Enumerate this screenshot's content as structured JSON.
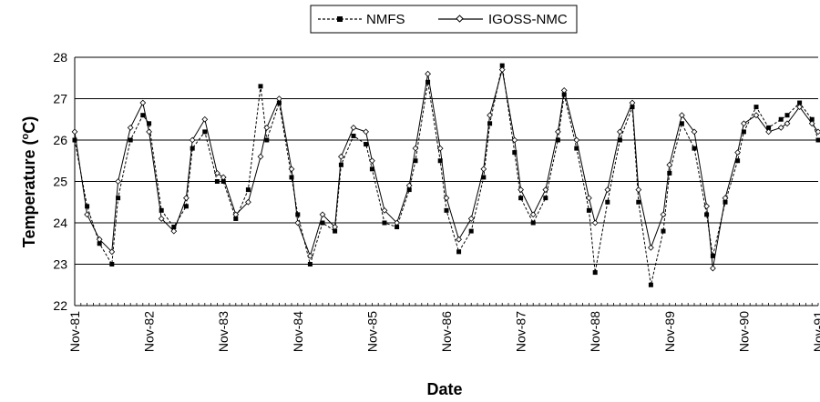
{
  "chart_data": {
    "type": "line",
    "title": "",
    "xlabel": "Date",
    "ylabel": "Temperature (ºC)",
    "ylabel_main": "Temperature (",
    "ylabel_sup": "o",
    "ylabel_end": "C)",
    "ylim": [
      22,
      28
    ],
    "yticks": [
      22,
      23,
      24,
      25,
      26,
      27,
      28
    ],
    "xlim": [
      "1981-11",
      "1991-11"
    ],
    "xticks": [
      "Nov-81",
      "Nov-82",
      "Nov-83",
      "Nov-84",
      "Nov-85",
      "Nov-86",
      "Nov-87",
      "Nov-88",
      "Nov-89",
      "Nov-90",
      "Nov-91"
    ],
    "grid": "horizontal",
    "legend_position": "top-right",
    "series": [
      {
        "name": "NMFS",
        "style": "dashed-square-markers",
        "color": "#000000",
        "x": [
          "1981-11",
          "1982-01",
          "1982-03",
          "1982-05",
          "1982-06",
          "1982-08",
          "1982-10",
          "1982-11",
          "1983-01",
          "1983-03",
          "1983-05",
          "1983-06",
          "1983-08",
          "1983-10",
          "1983-11",
          "1984-01",
          "1984-03",
          "1984-05",
          "1984-06",
          "1984-08",
          "1984-10",
          "1984-11",
          "1985-01",
          "1985-03",
          "1985-05",
          "1985-06",
          "1985-08",
          "1985-10",
          "1985-11",
          "1986-01",
          "1986-03",
          "1986-05",
          "1986-06",
          "1986-08",
          "1986-10",
          "1986-11",
          "1987-01",
          "1987-03",
          "1987-05",
          "1987-06",
          "1987-08",
          "1987-10",
          "1987-11",
          "1988-01",
          "1988-03",
          "1988-05",
          "1988-06",
          "1988-08",
          "1988-10",
          "1988-11",
          "1989-01",
          "1989-03",
          "1989-05",
          "1989-06",
          "1989-08",
          "1989-10",
          "1989-11",
          "1990-01",
          "1990-03",
          "1990-05",
          "1990-06",
          "1990-08",
          "1990-10",
          "1990-11",
          "1991-01",
          "1991-03",
          "1991-05",
          "1991-06",
          "1991-08",
          "1991-10",
          "1991-11"
        ],
        "values": [
          26.0,
          24.4,
          23.5,
          23.0,
          24.6,
          26.0,
          26.6,
          26.4,
          24.3,
          23.9,
          24.4,
          25.8,
          26.2,
          25.0,
          25.0,
          24.1,
          24.8,
          27.3,
          26.0,
          26.9,
          25.1,
          24.2,
          23.0,
          24.0,
          23.8,
          25.4,
          26.1,
          25.9,
          25.3,
          24.0,
          23.9,
          24.8,
          25.5,
          27.4,
          25.5,
          24.3,
          23.3,
          23.8,
          25.1,
          26.4,
          27.8,
          25.7,
          24.6,
          24.0,
          24.6,
          26.0,
          27.1,
          25.8,
          24.3,
          22.8,
          24.5,
          26.0,
          26.8,
          24.5,
          22.5,
          23.8,
          25.2,
          26.4,
          25.8,
          24.2,
          23.2,
          24.5,
          25.5,
          26.2,
          26.8,
          26.3,
          26.5,
          26.6,
          26.9,
          26.5,
          26.0
        ]
      },
      {
        "name": "IGOSS-NMC",
        "style": "solid-diamond-markers",
        "color": "#000000",
        "x": [
          "1981-11",
          "1982-01",
          "1982-03",
          "1982-05",
          "1982-06",
          "1982-08",
          "1982-10",
          "1982-11",
          "1983-01",
          "1983-03",
          "1983-05",
          "1983-06",
          "1983-08",
          "1983-10",
          "1983-11",
          "1984-01",
          "1984-03",
          "1984-05",
          "1984-06",
          "1984-08",
          "1984-10",
          "1984-11",
          "1985-01",
          "1985-03",
          "1985-05",
          "1985-06",
          "1985-08",
          "1985-10",
          "1985-11",
          "1986-01",
          "1986-03",
          "1986-05",
          "1986-06",
          "1986-08",
          "1986-10",
          "1986-11",
          "1987-01",
          "1987-03",
          "1987-05",
          "1987-06",
          "1987-08",
          "1987-10",
          "1987-11",
          "1988-01",
          "1988-03",
          "1988-05",
          "1988-06",
          "1988-08",
          "1988-10",
          "1988-11",
          "1989-01",
          "1989-03",
          "1989-05",
          "1989-06",
          "1989-08",
          "1989-10",
          "1989-11",
          "1990-01",
          "1990-03",
          "1990-05",
          "1990-06",
          "1990-08",
          "1990-10",
          "1990-11",
          "1991-01",
          "1991-03",
          "1991-05",
          "1991-06",
          "1991-08",
          "1991-10",
          "1991-11"
        ],
        "values": [
          26.2,
          24.2,
          23.6,
          23.3,
          25.0,
          26.3,
          26.9,
          26.2,
          24.1,
          23.8,
          24.6,
          26.0,
          26.5,
          25.2,
          25.1,
          24.2,
          24.5,
          25.6,
          26.3,
          27.0,
          25.3,
          24.0,
          23.2,
          24.2,
          23.9,
          25.6,
          26.3,
          26.2,
          25.5,
          24.3,
          24.0,
          24.9,
          25.8,
          27.6,
          25.8,
          24.6,
          23.6,
          24.1,
          25.3,
          26.6,
          27.7,
          26.0,
          24.8,
          24.2,
          24.8,
          26.2,
          27.2,
          26.0,
          24.6,
          24.0,
          24.8,
          26.2,
          26.9,
          24.8,
          23.4,
          24.2,
          25.4,
          26.6,
          26.2,
          24.4,
          22.9,
          24.6,
          25.7,
          26.4,
          26.6,
          26.2,
          26.3,
          26.4,
          26.8,
          26.4,
          26.2
        ]
      }
    ]
  }
}
